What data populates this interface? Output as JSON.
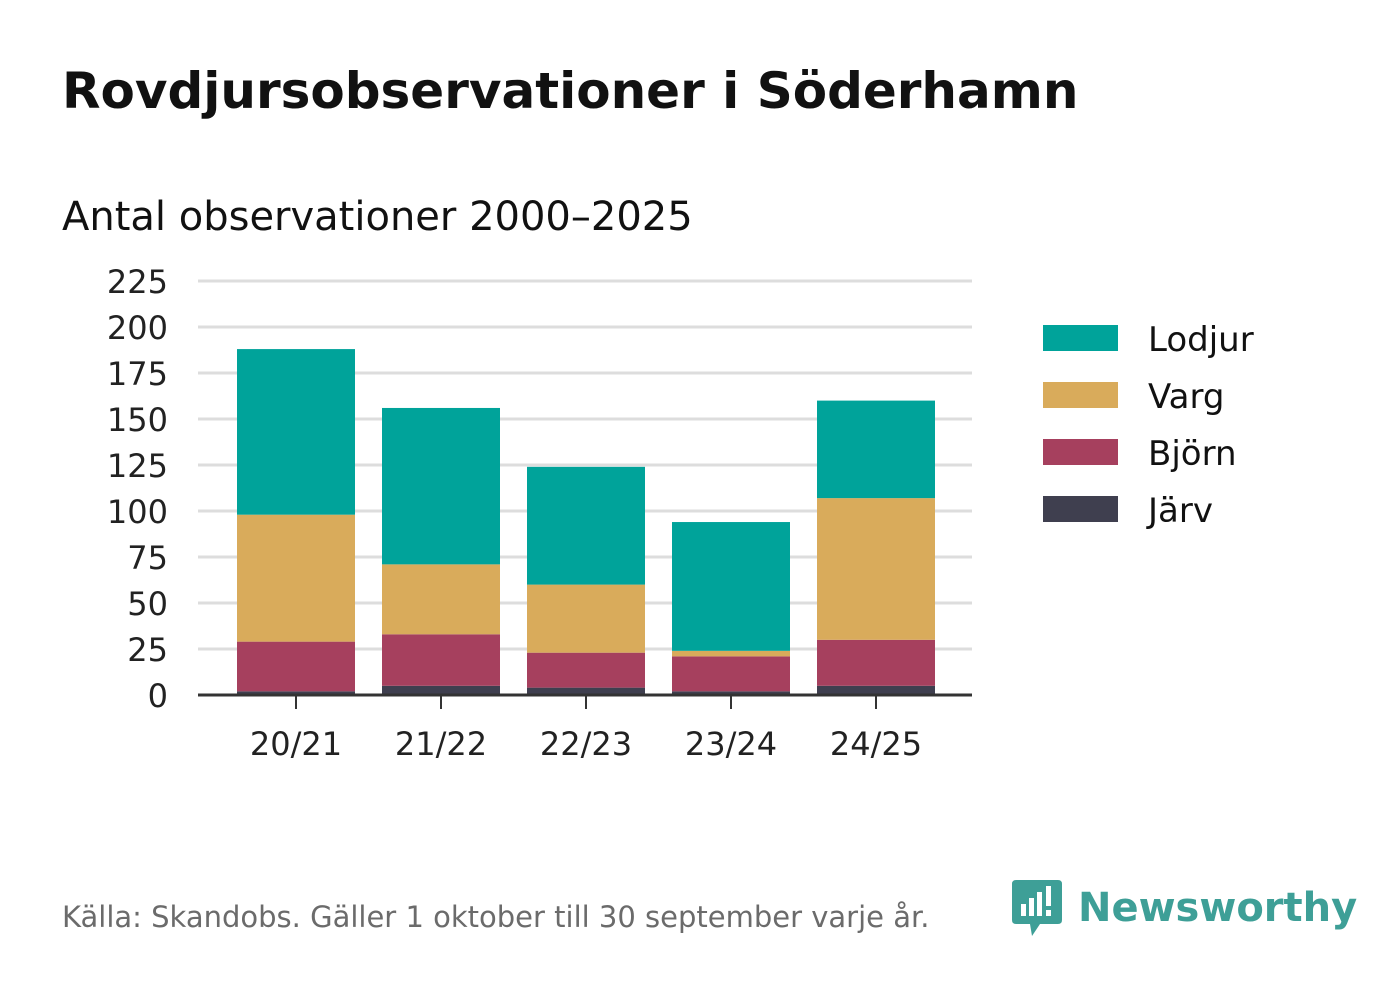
{
  "header": {
    "title": "Rovdjursobservationer i Söderhamn",
    "subtitle": "Antal observationer 2000–2025"
  },
  "footer": {
    "source": "Källa: Skandobs. Gäller 1 oktober till 30 september varje år.",
    "brand": "Newsworthy"
  },
  "colors": {
    "Lodjur": "#00a39a",
    "Varg": "#d9ab5b",
    "Björn": "#a6405e",
    "Järv": "#3f3f4f",
    "grid": "#dddddd",
    "axis": "#333333",
    "brand": "#3e9f97"
  },
  "chart_data": {
    "type": "bar",
    "stacked": true,
    "title": "Antal observationer 2000–2025",
    "xlabel": "",
    "ylabel": "",
    "ylim": [
      0,
      225
    ],
    "yticks": [
      0,
      25,
      50,
      75,
      100,
      125,
      150,
      175,
      200,
      225
    ],
    "grid": true,
    "legend_position": "right",
    "categories": [
      "20/21",
      "21/22",
      "22/23",
      "23/24",
      "24/25"
    ],
    "series": [
      {
        "name": "Järv",
        "values": [
          2,
          5,
          4,
          2,
          5
        ]
      },
      {
        "name": "Björn",
        "values": [
          27,
          28,
          19,
          19,
          25
        ]
      },
      {
        "name": "Varg",
        "values": [
          69,
          38,
          37,
          3,
          77
        ]
      },
      {
        "name": "Lodjur",
        "values": [
          90,
          85,
          64,
          70,
          53
        ]
      }
    ],
    "legend_order": [
      "Lodjur",
      "Varg",
      "Björn",
      "Järv"
    ]
  }
}
